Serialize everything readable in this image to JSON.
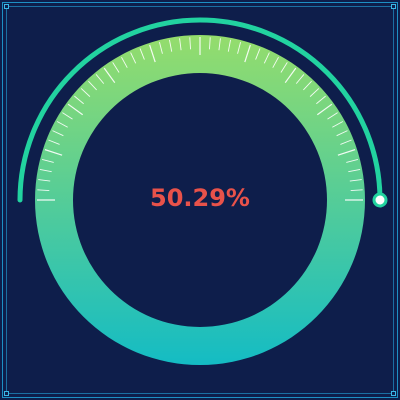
{
  "gauge": {
    "value_label": "50.29%",
    "value": 50.29,
    "colors": {
      "background": "#0e1e4b",
      "frame": "#1d8fc4",
      "ring_top": "#95dd6c",
      "ring_bottom": "#14bcc4",
      "arc": "#22d3a0",
      "value_text": "#e8524a",
      "ticks": "#ffffff"
    }
  }
}
